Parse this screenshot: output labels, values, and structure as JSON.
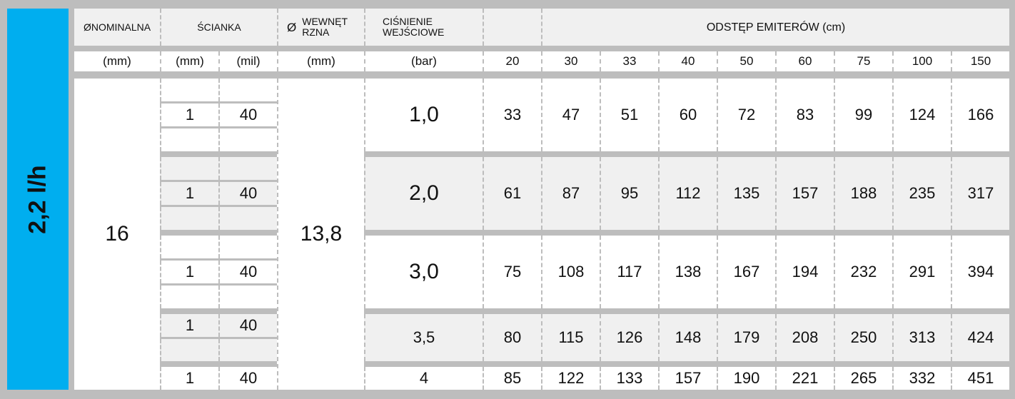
{
  "flow_label": "2,2 l/h",
  "header": {
    "nominal": "ØNOMINALNA",
    "wall": "ŚCIANKA",
    "inner_symbol": "Ø",
    "inner": "WEWNĘT RZNA",
    "pressure": "CIŚNIENIE WEJŚCIOWE",
    "spacing": "ODSTĘP EMITERÓW  (cm)"
  },
  "units": {
    "nominal": "(mm)",
    "wall_mm": "(mm)",
    "wall_mil": "(mil)",
    "inner": "(mm)",
    "pressure": "(bar)"
  },
  "spacings": [
    "20",
    "30",
    "33",
    "40",
    "50",
    "60",
    "75",
    "100",
    "150"
  ],
  "nominal_value": "16",
  "inner_value": "13,8",
  "rows": [
    {
      "pressure": "1,0",
      "wall_mm": "1",
      "wall_mil": "40",
      "values": [
        "33",
        "47",
        "51",
        "60",
        "72",
        "83",
        "99",
        "124",
        "166"
      ]
    },
    {
      "pressure": "2,0",
      "wall_mm": "1",
      "wall_mil": "40",
      "values": [
        "61",
        "87",
        "95",
        "112",
        "135",
        "157",
        "188",
        "235",
        "317"
      ]
    },
    {
      "pressure": "3,0",
      "wall_mm": "1",
      "wall_mil": "40",
      "values": [
        "75",
        "108",
        "117",
        "138",
        "167",
        "194",
        "232",
        "291",
        "394"
      ]
    },
    {
      "pressure": "3,5",
      "wall_mm": "1",
      "wall_mil": "40",
      "values": [
        "80",
        "115",
        "126",
        "148",
        "179",
        "208",
        "250",
        "313",
        "424"
      ]
    },
    {
      "pressure": "4",
      "wall_mm": "1",
      "wall_mil": "40",
      "values": [
        "85",
        "122",
        "133",
        "157",
        "190",
        "221",
        "265",
        "332",
        "451"
      ]
    }
  ]
}
